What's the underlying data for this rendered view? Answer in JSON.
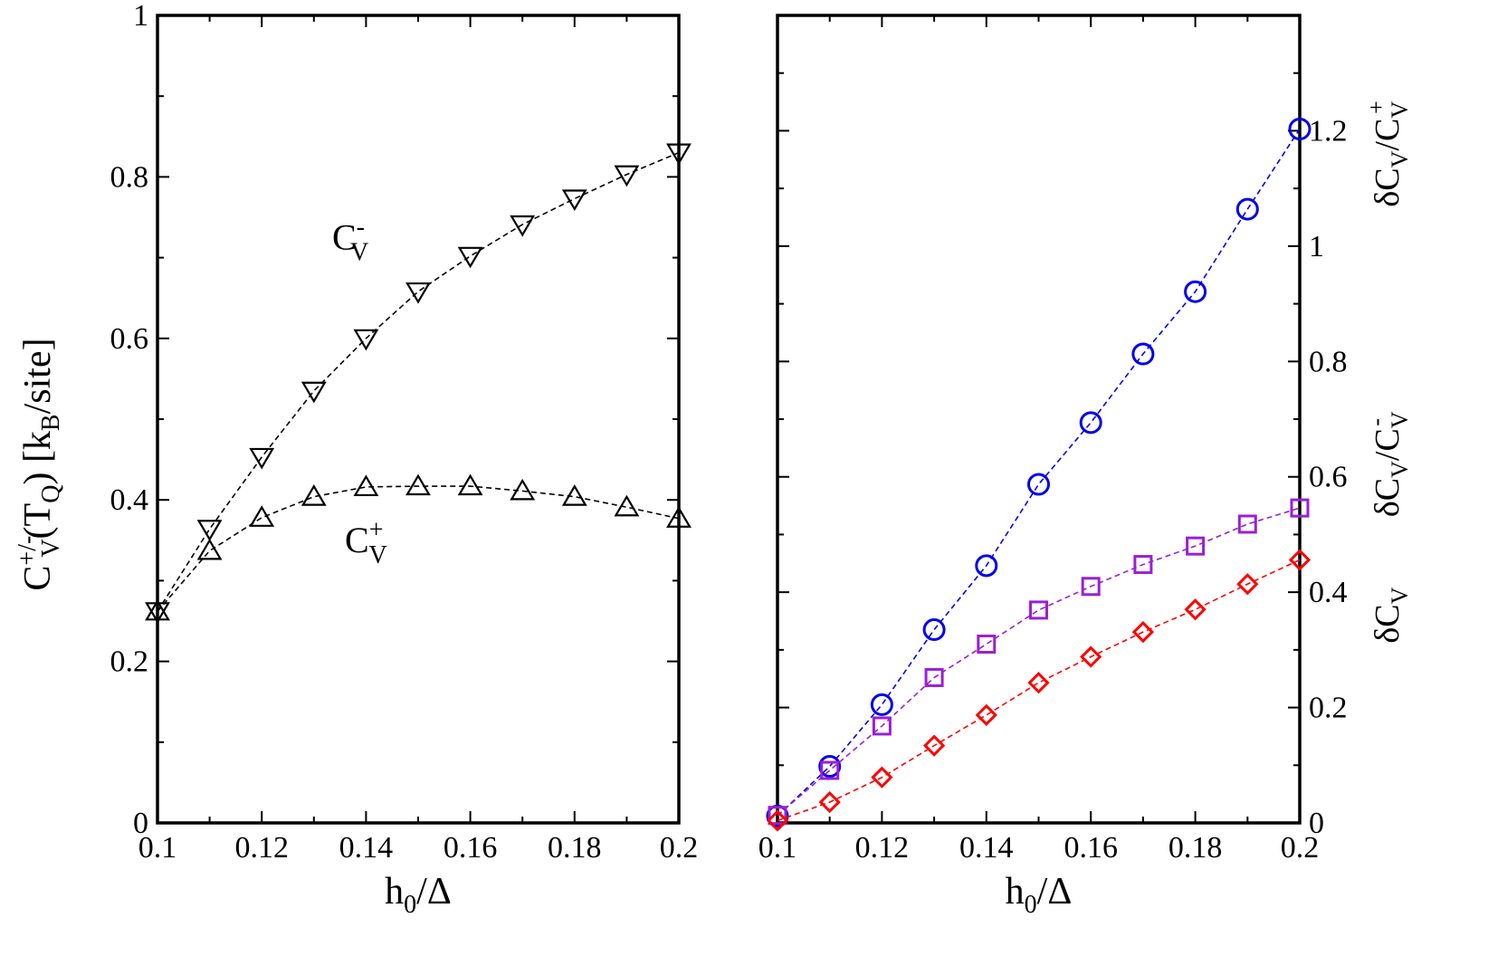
{
  "chart_data": [
    {
      "type": "line",
      "panel": "left",
      "xlabel": {
        "main": "h",
        "sub": "0",
        "rest": "/Δ"
      },
      "ylabel": {
        "c": "C",
        "sup": "+/-",
        "sub": "V",
        "mid": "(T",
        "sub2": "Q",
        "mid2": ") [k",
        "sub3": "B",
        "end": "/site]"
      },
      "xlim": [
        0.1,
        0.2
      ],
      "ylim": [
        0,
        1
      ],
      "xticks": [
        "0.1",
        "0.12",
        "0.14",
        "0.16",
        "0.18",
        "0.2"
      ],
      "yticks": [
        "0",
        "0.2",
        "0.4",
        "0.6",
        "0.8",
        "1"
      ],
      "x": [
        0.1,
        0.11,
        0.12,
        0.13,
        0.14,
        0.15,
        0.16,
        0.17,
        0.18,
        0.19,
        0.2
      ],
      "series": [
        {
          "key": "cminus",
          "marker": "triangle-down",
          "color": "#000000",
          "values": [
            0.262,
            0.364,
            0.453,
            0.535,
            0.6,
            0.658,
            0.702,
            0.741,
            0.773,
            0.803,
            0.83
          ]
        },
        {
          "key": "cplus",
          "marker": "triangle-up",
          "color": "#000000",
          "values": [
            0.262,
            0.337,
            0.378,
            0.404,
            0.416,
            0.417,
            0.417,
            0.411,
            0.404,
            0.391,
            0.377
          ]
        }
      ],
      "annotations": [
        {
          "key": "cminus",
          "c": "C",
          "sup": "-",
          "sub": "V",
          "at": [
            0.137,
            0.71
          ]
        },
        {
          "key": "cplus",
          "c": "C",
          "sup": "+",
          "sub": "V",
          "at": [
            0.14,
            0.335
          ]
        }
      ],
      "grid": false
    },
    {
      "type": "line",
      "panel": "right",
      "xlabel": {
        "main": "h",
        "sub": "0",
        "rest": "/Δ"
      },
      "ylabels": [
        {
          "key": "ratio_plus",
          "d": "δC",
          "sub": "V",
          "slash": "/C",
          "sub2": "V",
          "sup": "+",
          "anchor_y": 1.16
        },
        {
          "key": "ratio_minus",
          "d": "δC",
          "sub": "V",
          "slash": "/C",
          "sub2": "V",
          "sup": "-",
          "anchor_y": 0.62
        },
        {
          "key": "abs",
          "d": "δC",
          "sub": "V",
          "anchor_y": 0.36
        }
      ],
      "xlim": [
        0.1,
        0.2
      ],
      "ylim": [
        0,
        1.4
      ],
      "xticks": [
        "0.1",
        "0.12",
        "0.14",
        "0.16",
        "0.18",
        "0.2"
      ],
      "yticks": [
        "0",
        "0.2",
        "0.4",
        "0.6",
        "0.8",
        "1",
        "1.2"
      ],
      "y_axis_side": "right",
      "x": [
        0.1,
        0.11,
        0.12,
        0.13,
        0.14,
        0.15,
        0.16,
        0.17,
        0.18,
        0.19,
        0.2
      ],
      "series": [
        {
          "key": "circles",
          "marker": "circle",
          "color": "#0000ee",
          "values": [
            0.012,
            0.098,
            0.205,
            0.335,
            0.446,
            0.587,
            0.694,
            0.813,
            0.921,
            1.064,
            1.203
          ]
        },
        {
          "key": "squares",
          "marker": "square",
          "color": "#9a1fd6",
          "values": [
            0.013,
            0.091,
            0.168,
            0.252,
            0.31,
            0.369,
            0.41,
            0.448,
            0.48,
            0.518,
            0.546
          ]
        },
        {
          "key": "diamonds",
          "marker": "diamond",
          "color": "#ff0000",
          "values": [
            0.004,
            0.036,
            0.079,
            0.134,
            0.187,
            0.243,
            0.288,
            0.331,
            0.37,
            0.414,
            0.456
          ]
        }
      ],
      "grid": false
    }
  ]
}
